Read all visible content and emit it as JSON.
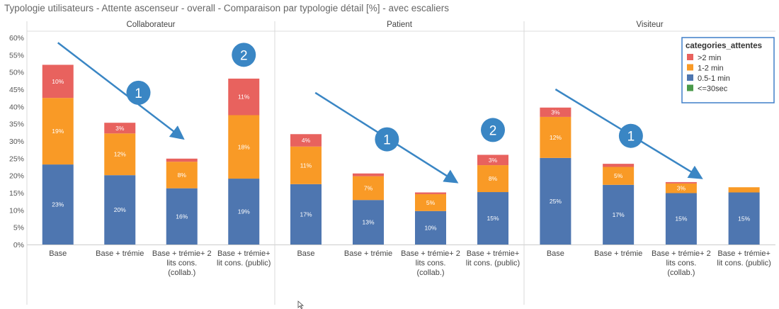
{
  "window": {
    "title": "Typologie utilisateurs - Attente ascenseur - overall - Comparaison par typologie détail [%] - avec escaliers"
  },
  "colors": {
    "gt2min": "#e8625e",
    "1to2min": "#f99a26",
    "0_5to1min": "#4e76b0",
    "le30sec": "#4a9a4a",
    "arrow": "#3a86c4",
    "badge": "#3a86c4",
    "grid": "#e4e4e4",
    "axis_text": "#555555"
  },
  "chart_data": {
    "type": "bar",
    "stacked": true,
    "title": "",
    "xlabel": "",
    "ylabel": "",
    "ylim": [
      0,
      60
    ],
    "yticks": [
      "0%",
      "5%",
      "10%",
      "15%",
      "20%",
      "25%",
      "30%",
      "35%",
      "40%",
      "45%",
      "50%",
      "55%",
      "60%"
    ],
    "grid": false,
    "legend": {
      "title": "categories_attentes",
      "position": "top-right",
      "items": [
        ">2 min",
        "1-2 min",
        "0.5-1 min",
        "<=30sec"
      ]
    },
    "segment_order": [
      "0.5-1 min",
      "1-2 min",
      ">2 min"
    ],
    "panels": [
      {
        "header": "Collaborateur",
        "categories": [
          "Base",
          "Base + trémie",
          "Base + trémie+ 2 lits cons. (collab.)",
          "Base + trémie+ lit cons. (public)"
        ],
        "category_lines": [
          [
            "Base"
          ],
          [
            "Base + trémie"
          ],
          [
            "Base + trémie+ 2",
            "lits cons.",
            "(collab.)"
          ],
          [
            "Base + trémie+",
            "lit cons. (public)"
          ]
        ],
        "series": [
          {
            "name": "0.5-1 min",
            "values": [
              23.2,
              20.1,
              16.3,
              19.1
            ],
            "labels": [
              "23%",
              "20%",
              "16%",
              "19%"
            ]
          },
          {
            "name": "1-2 min",
            "values": [
              19.3,
              12.1,
              7.7,
              18.4
            ],
            "labels": [
              "19%",
              "12%",
              "8%",
              "18%"
            ]
          },
          {
            "name": ">2 min",
            "values": [
              9.6,
              3.1,
              0.9,
              10.6
            ],
            "labels": [
              "10%",
              "3%",
              "",
              "11%"
            ]
          }
        ],
        "annotations": [
          {
            "type": "arrow",
            "from_bar": 0,
            "to_bar": 2,
            "y_start": 58.5,
            "y_end": 31.0
          },
          {
            "type": "badge",
            "text": "1",
            "near_bar": 1.3,
            "y": 44.0
          },
          {
            "type": "badge",
            "text": "2",
            "near_bar": 3,
            "y": 55.0
          }
        ]
      },
      {
        "header": "Patient",
        "categories": [
          "Base",
          "Base + trémie",
          "Base + trémie+ 2 lits cons. (collab.)",
          "Base + trémie+ lit cons. (public)"
        ],
        "category_lines": [
          [
            "Base"
          ],
          [
            "Base + trémie"
          ],
          [
            "Base + trémie+ 2",
            "lits cons.",
            "(collab.)"
          ],
          [
            "Base + trémie+",
            "lit cons. (public)"
          ]
        ],
        "series": [
          {
            "name": "0.5-1 min",
            "values": [
              17.5,
              12.9,
              9.7,
              15.2
            ],
            "labels": [
              "17%",
              "13%",
              "10%",
              "15%"
            ]
          },
          {
            "name": "1-2 min",
            "values": [
              10.9,
              6.9,
              4.9,
              7.8
            ],
            "labels": [
              "11%",
              "7%",
              "5%",
              "8%"
            ]
          },
          {
            "name": ">2 min",
            "values": [
              3.6,
              0.8,
              0.5,
              3.0
            ],
            "labels": [
              "4%",
              "",
              "",
              "3%"
            ]
          }
        ],
        "annotations": [
          {
            "type": "arrow",
            "from_bar": 0.15,
            "to_bar": 2.4,
            "y_start": 44.0,
            "y_end": 18.3
          },
          {
            "type": "badge",
            "text": "1",
            "near_bar": 1.3,
            "y": 30.5
          },
          {
            "type": "badge",
            "text": "2",
            "near_bar": 3,
            "y": 33.2
          }
        ]
      },
      {
        "header": "Visiteur",
        "categories": [
          "Base",
          "Base + trémie",
          "Base + trémie+ 2 lits cons. (collab.)",
          "Base + trémie+ lit cons. (public)"
        ],
        "category_lines": [
          [
            "Base"
          ],
          [
            "Base + trémie"
          ],
          [
            "Base + trémie+ 2",
            "lits cons.",
            "(collab.)"
          ],
          [
            "Base + trémie+",
            "lit cons. (public)"
          ]
        ],
        "series": [
          {
            "name": "0.5-1 min",
            "values": [
              25.1,
              17.3,
              14.9,
              15.1
            ],
            "labels": [
              "25%",
              "17%",
              "15%",
              "15%"
            ]
          },
          {
            "name": "1-2 min",
            "values": [
              11.9,
              5.2,
              2.8,
              1.5
            ],
            "labels": [
              "12%",
              "5%",
              "3%",
              ""
            ]
          },
          {
            "name": ">2 min",
            "values": [
              2.7,
              0.9,
              0.4,
              0.0
            ],
            "labels": [
              "3%",
              "",
              "",
              ""
            ]
          }
        ],
        "annotations": [
          {
            "type": "arrow",
            "from_bar": 0.0,
            "to_bar": 2.3,
            "y_start": 45.0,
            "y_end": 19.5
          },
          {
            "type": "badge",
            "text": "1",
            "near_bar": 1.2,
            "y": 31.5
          }
        ]
      }
    ]
  }
}
